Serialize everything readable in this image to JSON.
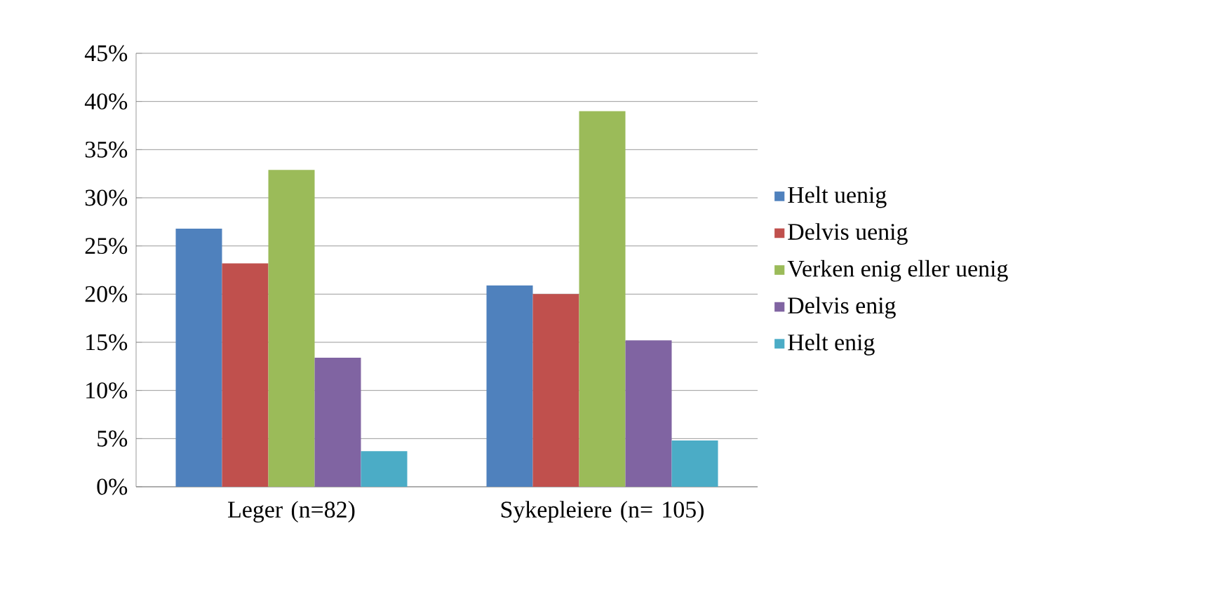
{
  "chart_data": {
    "type": "bar",
    "categories": [
      "Leger (n=82)",
      "Sykepleiere (n= 105)"
    ],
    "series": [
      {
        "name": "Helt uenig",
        "color": "#4f81bd",
        "values": [
          26.8,
          20.9
        ]
      },
      {
        "name": "Delvis uenig",
        "color": "#c0504d",
        "values": [
          23.2,
          20.0
        ]
      },
      {
        "name": "Verken enig eller uenig",
        "color": "#9bbb59",
        "values": [
          32.9,
          39.0
        ]
      },
      {
        "name": "Delvis enig",
        "color": "#8064a2",
        "values": [
          13.4,
          15.2
        ]
      },
      {
        "name": "Helt enig",
        "color": "#4bacc6",
        "values": [
          3.7,
          4.8
        ]
      }
    ],
    "ylim": [
      0,
      45
    ],
    "yticks": [
      {
        "value": 0,
        "label": "0%"
      },
      {
        "value": 5,
        "label": "5%"
      },
      {
        "value": 10,
        "label": "10%"
      },
      {
        "value": 15,
        "label": "15%"
      },
      {
        "value": 20,
        "label": "20%"
      },
      {
        "value": 25,
        "label": "25%"
      },
      {
        "value": 30,
        "label": "30%"
      },
      {
        "value": 35,
        "label": "35%"
      },
      {
        "value": 40,
        "label": "40%"
      },
      {
        "value": 45,
        "label": "45%"
      }
    ],
    "grid": "y",
    "legend": "right"
  }
}
